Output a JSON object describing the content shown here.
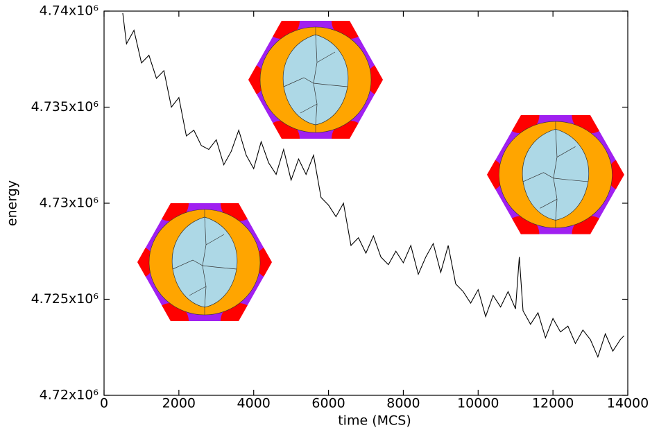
{
  "chart_data": {
    "type": "line",
    "xlabel": "time (MCS)",
    "ylabel": "energy",
    "color": "#000000",
    "x": [
      500,
      600,
      800,
      1000,
      1200,
      1400,
      1600,
      1800,
      2000,
      2200,
      2400,
      2600,
      2800,
      3000,
      3200,
      3400,
      3600,
      3800,
      4000,
      4200,
      4400,
      4600,
      4800,
      5000,
      5200,
      5400,
      5600,
      5800,
      6000,
      6200,
      6400,
      6600,
      6800,
      7000,
      7200,
      7400,
      7600,
      7800,
      8000,
      8200,
      8400,
      8600,
      8800,
      9000,
      9200,
      9400,
      9600,
      9800,
      10000,
      10200,
      10400,
      10600,
      10800,
      11000,
      11100,
      11200,
      11400,
      11600,
      11800,
      12000,
      12200,
      12400,
      12600,
      12800,
      13000,
      13200,
      13400,
      13600,
      13800,
      13900
    ],
    "values": [
      4739900,
      4738300,
      4739000,
      4737300,
      4737700,
      4736500,
      4736900,
      4735000,
      4735500,
      4733500,
      4733800,
      4733000,
      4732800,
      4733300,
      4732000,
      4732700,
      4733800,
      4732500,
      4731800,
      4733200,
      4732100,
      4731500,
      4732800,
      4731200,
      4732300,
      4731500,
      4732500,
      4730300,
      4729900,
      4729300,
      4730000,
      4727800,
      4728200,
      4727400,
      4728300,
      4727200,
      4726800,
      4727500,
      4726900,
      4727800,
      4726300,
      4727200,
      4727900,
      4726400,
      4727800,
      4725800,
      4725400,
      4724800,
      4725500,
      4724100,
      4725200,
      4724600,
      4725400,
      4724500,
      4727200,
      4724400,
      4723700,
      4724300,
      4723000,
      4724000,
      4723300,
      4723600,
      4722700,
      4723400,
      4722900,
      4722000,
      4723200,
      4722300,
      4722900,
      4723100
    ],
    "xlim": [
      0,
      14000
    ],
    "xticks": [
      0,
      2000,
      4000,
      6000,
      8000,
      10000,
      12000,
      14000
    ],
    "ylim": [
      4720000,
      4740000
    ],
    "yticks": [
      {
        "value": 4720000,
        "label": "4.72x10⁶"
      },
      {
        "value": 4725000,
        "label": "4.725x10⁶"
      },
      {
        "value": 4730000,
        "label": "4.73x10⁶"
      },
      {
        "value": 4735000,
        "label": "4.735x10⁶"
      },
      {
        "value": 4740000,
        "label": "4.74x10⁶"
      }
    ]
  }
}
